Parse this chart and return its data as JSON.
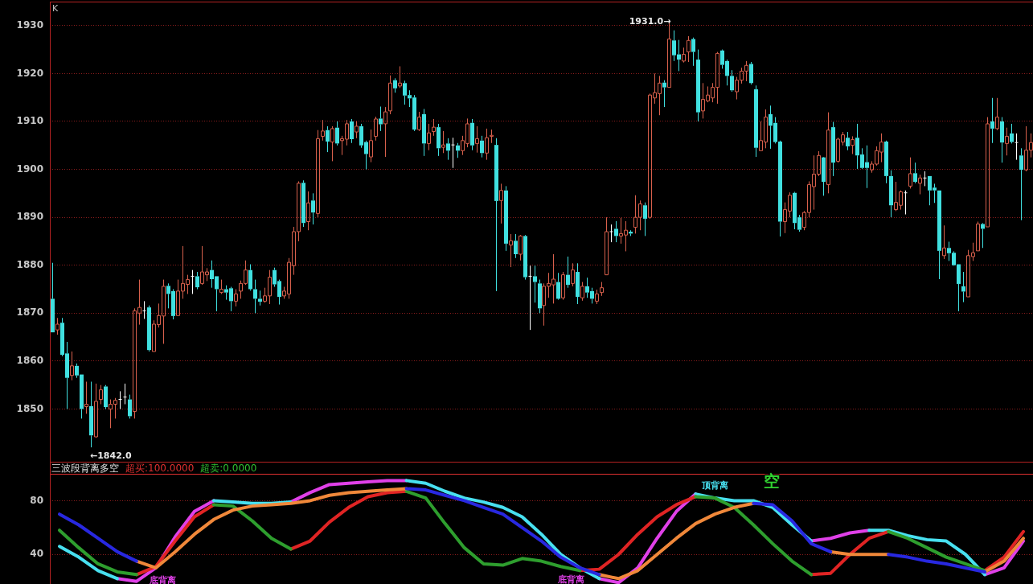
{
  "chart_data": [
    {
      "type": "candlestick",
      "title": "K",
      "categories": [
        null,
        null,
        null,
        null,
        null,
        null,
        null,
        null,
        null,
        null,
        null,
        null,
        null,
        null,
        null,
        null,
        null,
        null,
        null,
        null,
        null,
        null,
        null,
        null,
        null,
        null,
        null,
        null,
        null,
        null,
        null,
        null,
        null,
        null,
        null,
        null,
        null,
        null,
        null,
        null,
        null,
        null,
        null,
        null,
        null,
        null,
        null,
        null,
        null,
        null,
        null,
        null,
        null,
        null,
        null,
        null,
        null,
        null,
        null,
        null,
        null,
        null,
        null,
        null,
        null,
        null,
        null,
        null,
        null,
        null,
        null,
        null,
        null,
        null,
        null,
        null,
        null,
        null,
        null,
        null,
        null,
        null,
        null,
        null,
        null,
        null,
        null,
        null,
        null,
        null,
        null,
        null,
        null,
        null,
        null,
        null,
        null,
        null,
        null,
        null,
        null,
        null,
        null,
        null,
        null,
        null,
        null,
        null,
        null,
        null,
        null,
        null,
        null,
        null,
        null,
        null,
        null,
        null,
        null,
        null,
        null,
        null,
        null,
        null,
        null,
        null,
        null,
        null,
        null,
        null,
        null,
        null,
        null,
        null,
        null,
        null,
        null,
        null,
        null,
        null,
        null,
        null,
        null,
        null,
        null,
        null,
        null,
        null,
        null,
        null,
        null,
        null,
        null,
        null,
        null,
        null,
        null,
        null,
        null,
        null,
        null,
        null,
        null,
        null,
        null,
        null,
        null,
        null,
        null,
        null,
        null,
        null,
        null,
        null,
        null,
        null,
        null,
        null,
        null,
        null,
        null,
        null,
        null,
        null,
        null,
        null,
        null,
        null,
        null,
        null,
        null,
        null,
        null,
        null,
        null,
        null,
        null,
        null,
        null,
        null,
        null,
        null,
        null,
        null
      ],
      "ohlc": [
        [
          1873,
          1880.5,
          1866,
          1866
        ],
        [
          1866.5,
          1869,
          1865.5,
          1867.7
        ],
        [
          1868,
          1869,
          1861,
          1861.3
        ],
        [
          1861.6,
          1864,
          1850,
          1856.5
        ],
        [
          1857,
          1862,
          1856,
          1859
        ],
        [
          1859,
          1859.5,
          1856.5,
          1857
        ],
        [
          1857.2,
          1857.2,
          1848,
          1850
        ],
        [
          1850.5,
          1855.7,
          1849,
          1851
        ],
        [
          1850.6,
          1855.7,
          1842,
          1844.5
        ],
        [
          1844.2,
          1855.3,
          1844,
          1851.6
        ],
        [
          1852,
          1855,
          1851,
          1854
        ],
        [
          1854.7,
          1855,
          1850,
          1850.4
        ],
        [
          1850,
          1852,
          1846,
          1851
        ],
        [
          1851,
          1852.3,
          1848,
          1851.8
        ],
        [
          1852,
          1853.7,
          1850,
          1852
        ],
        [
          1852.5,
          1855.3,
          1851,
          1852.5
        ],
        [
          1852,
          1853,
          1848,
          1848.5
        ],
        [
          1849.5,
          1871,
          1848,
          1870.5
        ],
        [
          1870,
          1877,
          1867.6,
          1871.2
        ],
        [
          1870.5,
          1872.5,
          1868.8,
          1870.5
        ],
        [
          1871.2,
          1871.6,
          1862,
          1862.3
        ],
        [
          1862,
          1868.5,
          1862,
          1867.7
        ],
        [
          1867.6,
          1872,
          1867,
          1869.5
        ],
        [
          1869.4,
          1877,
          1863.6,
          1875.6
        ],
        [
          1875.7,
          1876.2,
          1871,
          1874
        ],
        [
          1874.6,
          1875,
          1868.7,
          1869.4
        ],
        [
          1869.5,
          1877,
          1869.5,
          1874.6
        ],
        [
          1874.6,
          1884,
          1873,
          1876.2
        ],
        [
          1876,
          1878,
          1874,
          1877
        ],
        [
          1877.7,
          1879,
          1874,
          1877.7
        ],
        [
          1877.7,
          1878.6,
          1875,
          1875.4
        ],
        [
          1876.2,
          1884,
          1875.9,
          1878.6
        ],
        [
          1878,
          1879.4,
          1876.7,
          1878.6
        ],
        [
          1879,
          1881,
          1875.3,
          1877.1
        ],
        [
          1877.7,
          1877.7,
          1870.4,
          1875
        ],
        [
          1874.3,
          1877,
          1874,
          1875
        ],
        [
          1875,
          1875.8,
          1872.8,
          1874.3
        ],
        [
          1875.2,
          1875.5,
          1870.4,
          1872.5
        ],
        [
          1872.5,
          1875,
          1871.4,
          1874
        ],
        [
          1874.6,
          1876.8,
          1873,
          1876.2
        ],
        [
          1876.2,
          1881,
          1875.9,
          1879
        ],
        [
          1879,
          1880.2,
          1874.7,
          1875
        ],
        [
          1875,
          1877,
          1870,
          1873
        ],
        [
          1873,
          1874.7,
          1871.6,
          1872.4
        ],
        [
          1872.5,
          1875.3,
          1872.2,
          1873.6
        ],
        [
          1873.6,
          1879,
          1871.9,
          1877.5
        ],
        [
          1879,
          1879.5,
          1875.5,
          1876
        ],
        [
          1876.7,
          1877,
          1871.8,
          1873.4
        ],
        [
          1873.6,
          1875.5,
          1873,
          1874.6
        ],
        [
          1874,
          1881.5,
          1873,
          1880.6
        ],
        [
          1879.9,
          1888,
          1878,
          1887
        ],
        [
          1887,
          1897.5,
          1885,
          1897.1
        ],
        [
          1897.2,
          1897.7,
          1888,
          1888.8
        ],
        [
          1889.1,
          1895.4,
          1887.3,
          1893
        ],
        [
          1893.5,
          1895,
          1888.5,
          1891
        ],
        [
          1890.8,
          1908.2,
          1890,
          1906.4
        ],
        [
          1906.9,
          1910.3,
          1906,
          1908
        ],
        [
          1908.2,
          1909,
          1903.6,
          1905.8
        ],
        [
          1905.7,
          1909,
          1901.7,
          1908.5
        ],
        [
          1908.7,
          1910,
          1905,
          1905.4
        ],
        [
          1906,
          1907,
          1903,
          1906.4
        ],
        [
          1906.3,
          1910.3,
          1905,
          1909.5
        ],
        [
          1910,
          1910.5,
          1905.5,
          1906.3
        ],
        [
          1907.8,
          1910,
          1906.5,
          1909
        ],
        [
          1909,
          1909.5,
          1904.5,
          1905
        ],
        [
          1905.7,
          1906,
          1900,
          1903.2
        ],
        [
          1902.6,
          1908.3,
          1901.5,
          1906
        ],
        [
          1906.9,
          1911,
          1906,
          1910.5
        ],
        [
          1910.6,
          1913.1,
          1908,
          1909.4
        ],
        [
          1909.5,
          1913,
          1902.6,
          1912
        ],
        [
          1912.2,
          1919.6,
          1911.5,
          1918
        ],
        [
          1918.6,
          1919,
          1916,
          1916.9
        ],
        [
          1917.4,
          1921.5,
          1917,
          1918
        ],
        [
          1918,
          1918.5,
          1913.5,
          1915.4
        ],
        [
          1915.5,
          1916.5,
          1913,
          1914.8
        ],
        [
          1915,
          1915.5,
          1908,
          1908.3
        ],
        [
          1908.3,
          1912,
          1908,
          1910.9
        ],
        [
          1911.5,
          1912.6,
          1902.8,
          1905.4
        ],
        [
          1905.4,
          1909.5,
          1904,
          1907.6
        ],
        [
          1907.9,
          1910.5,
          1907,
          1908.8
        ],
        [
          1908.8,
          1909.5,
          1902.8,
          1904.4
        ],
        [
          1904.6,
          1908,
          1903.4,
          1905.1
        ],
        [
          1905.4,
          1906.5,
          1902,
          1903.9
        ],
        [
          1905.1,
          1906.6,
          1900.3,
          1905.1
        ],
        [
          1905,
          1905.5,
          1902.4,
          1903.9
        ],
        [
          1903.9,
          1907,
          1903,
          1906
        ],
        [
          1905.4,
          1910.6,
          1904.6,
          1909.5
        ],
        [
          1909.7,
          1910.5,
          1904,
          1905
        ],
        [
          1905.4,
          1909,
          1903.5,
          1906.4
        ],
        [
          1906,
          1907,
          1902.5,
          1903.4
        ],
        [
          1903.4,
          1908.5,
          1902,
          1906.6
        ],
        [
          1906.9,
          1908.3,
          1905.5,
          1907.1
        ],
        [
          1905.1,
          1906.5,
          1874.6,
          1893.4
        ],
        [
          1893.5,
          1897,
          1888.7,
          1895.6
        ],
        [
          1895.6,
          1896.5,
          1883,
          1884.5
        ],
        [
          1884.2,
          1886.5,
          1879.6,
          1885.1
        ],
        [
          1885.1,
          1886.5,
          1881.5,
          1882.3
        ],
        [
          1882.3,
          1886.3,
          1881,
          1886.1
        ],
        [
          1886.1,
          1886.3,
          1877,
          1877.5
        ],
        [
          1877.7,
          1879.9,
          1866.5,
          1877.7
        ],
        [
          1877.7,
          1879.9,
          1872.2,
          1876.5
        ],
        [
          1876.2,
          1877,
          1870,
          1871
        ],
        [
          1871.6,
          1876.2,
          1867.4,
          1875.6
        ],
        [
          1875.6,
          1878.4,
          1873.2,
          1876.2
        ],
        [
          1875.9,
          1882.3,
          1872,
          1877.1
        ],
        [
          1876.5,
          1878.4,
          1872.8,
          1873
        ],
        [
          1873.2,
          1878.6,
          1872.8,
          1878
        ],
        [
          1878,
          1881.8,
          1875.3,
          1875.9
        ],
        [
          1876.2,
          1880.4,
          1875.6,
          1879
        ],
        [
          1878.6,
          1880.4,
          1871.9,
          1873.4
        ],
        [
          1873.2,
          1876.5,
          1872.6,
          1875.6
        ],
        [
          1875.6,
          1877.4,
          1873.2,
          1874.3
        ],
        [
          1874.6,
          1875.3,
          1872,
          1873
        ],
        [
          1872.5,
          1874.9,
          1871.9,
          1874
        ],
        [
          1874.3,
          1876.5,
          1873.6,
          1875.3
        ],
        [
          1878,
          1890,
          1878,
          1887
        ],
        [
          1887,
          1888.5,
          1884.8,
          1887
        ],
        [
          1887.6,
          1889.2,
          1884.8,
          1886.1
        ],
        [
          1886.1,
          1889.9,
          1884.5,
          1886.6
        ],
        [
          1886.3,
          1889.2,
          1882.9,
          1887.3
        ],
        [
          1887,
          1887.3,
          1886.1,
          1886.6
        ],
        [
          1887.9,
          1894.6,
          1886.6,
          1890
        ],
        [
          1890,
          1893.5,
          1887.3,
          1892.8
        ],
        [
          1892.5,
          1893.1,
          1886.1,
          1889.7
        ],
        [
          1890,
          1915.8,
          1889.7,
          1915.5
        ],
        [
          1914.9,
          1920,
          1913.7,
          1916
        ],
        [
          1915.8,
          1919.5,
          1911.3,
          1918
        ],
        [
          1918.1,
          1918.6,
          1913,
          1917.1
        ],
        [
          1917.1,
          1931,
          1917.1,
          1927.2
        ],
        [
          1926.9,
          1929,
          1922.6,
          1923.8
        ],
        [
          1924,
          1927,
          1920.5,
          1922.9
        ],
        [
          1922.6,
          1925.4,
          1922.3,
          1924
        ],
        [
          1924.5,
          1927.8,
          1922.4,
          1926.9
        ],
        [
          1927.2,
          1927.5,
          1921.6,
          1924.5
        ],
        [
          1922.9,
          1925,
          1910,
          1911.9
        ],
        [
          1912.2,
          1918,
          1910.6,
          1914.6
        ],
        [
          1914.3,
          1917.3,
          1914,
          1915.5
        ],
        [
          1914.9,
          1918,
          1914,
          1917.1
        ],
        [
          1917.1,
          1924.5,
          1913.7,
          1924.2
        ],
        [
          1924.8,
          1925,
          1921,
          1921.8
        ],
        [
          1922.6,
          1922.9,
          1917.5,
          1919.5
        ],
        [
          1919.5,
          1920.7,
          1916.2,
          1916.5
        ],
        [
          1916.2,
          1919.3,
          1914.6,
          1918.6
        ],
        [
          1918.6,
          1921.2,
          1917.9,
          1920.5
        ],
        [
          1920.5,
          1922.6,
          1918.4,
          1921.7
        ],
        [
          1922,
          1922.4,
          1917.7,
          1918
        ],
        [
          1916.7,
          1917.5,
          1902.6,
          1904.5
        ],
        [
          1903.9,
          1910,
          1903.9,
          1906
        ],
        [
          1905.7,
          1912.5,
          1904.4,
          1910.9
        ],
        [
          1911.5,
          1913.3,
          1904.3,
          1909.1
        ],
        [
          1909.7,
          1910.9,
          1905.4,
          1905.7
        ],
        [
          1905.8,
          1906,
          1886,
          1889.1
        ],
        [
          1889.1,
          1893.1,
          1886.7,
          1891.6
        ],
        [
          1891.3,
          1895.2,
          1890,
          1894.6
        ],
        [
          1895.1,
          1895.3,
          1887.5,
          1888.8
        ],
        [
          1890,
          1890.5,
          1887,
          1887.4
        ],
        [
          1887.9,
          1891.3,
          1887.3,
          1891
        ],
        [
          1891,
          1897.5,
          1890,
          1896.8
        ],
        [
          1896.4,
          1902.9,
          1891.6,
          1899
        ],
        [
          1899,
          1903.8,
          1898.6,
          1902.9
        ],
        [
          1902.5,
          1902.6,
          1894.5,
          1897.4
        ],
        [
          1896.8,
          1911.9,
          1895,
          1908.2
        ],
        [
          1908.8,
          1909.9,
          1898.6,
          1901.4
        ],
        [
          1901.7,
          1906.6,
          1901.4,
          1906.3
        ],
        [
          1905.7,
          1907.8,
          1905,
          1907.2
        ],
        [
          1906.6,
          1907.8,
          1904,
          1904.8
        ],
        [
          1905,
          1906.9,
          1903.2,
          1906.2
        ],
        [
          1906.6,
          1909.5,
          1900.1,
          1902.9
        ],
        [
          1903.1,
          1904.4,
          1900.1,
          1900.3
        ],
        [
          1901.5,
          1905,
          1896.1,
          1900.3
        ],
        [
          1899.9,
          1901.7,
          1899.3,
          1901.1
        ],
        [
          1901.1,
          1904.8,
          1900.8,
          1903.9
        ],
        [
          1903.6,
          1907.5,
          1901.5,
          1905.7
        ],
        [
          1905.8,
          1906,
          1897.1,
          1898.6
        ],
        [
          1898.6,
          1899.8,
          1890,
          1892.5
        ],
        [
          1891.6,
          1897.4,
          1891.3,
          1893.1
        ],
        [
          1892.5,
          1895.6,
          1891.6,
          1895.3
        ],
        [
          1895.1,
          1895.6,
          1890.6,
          1895.1
        ],
        [
          1896.5,
          1902.5,
          1896,
          1899.1
        ],
        [
          1899.2,
          1901.4,
          1897.1,
          1897.4
        ],
        [
          1897.1,
          1898.9,
          1894.8,
          1898.2
        ],
        [
          1898.2,
          1899.6,
          1896.5,
          1898.2
        ],
        [
          1898.6,
          1898.6,
          1892.5,
          1895.6
        ],
        [
          1896.2,
          1897,
          1893,
          1895.6
        ],
        [
          1895.6,
          1895.6,
          1877.1,
          1883
        ],
        [
          1882,
          1888.3,
          1881.3,
          1883.6
        ],
        [
          1883.6,
          1884.9,
          1880.9,
          1882.5
        ],
        [
          1882.6,
          1882.9,
          1879.9,
          1880
        ],
        [
          1880.2,
          1880.2,
          1870.4,
          1876.1
        ],
        [
          1875.6,
          1878.6,
          1872.3,
          1874.5
        ],
        [
          1873.4,
          1883.2,
          1873.4,
          1882
        ],
        [
          1881.8,
          1884.7,
          1880.9,
          1882.6
        ],
        [
          1883,
          1889.1,
          1883,
          1888.6
        ],
        [
          1888.6,
          1888.8,
          1883.6,
          1887.6
        ],
        [
          1888,
          1910.9,
          1888,
          1909.5
        ],
        [
          1910,
          1914.9,
          1905.5,
          1908.5
        ],
        [
          1908.5,
          1914.9,
          1908.2,
          1910.9
        ],
        [
          1910,
          1910.9,
          1901.4,
          1905.6
        ],
        [
          1905.4,
          1908.7,
          1902.9,
          1906.9
        ],
        [
          1907.5,
          1909.5,
          1905.4,
          1905.7
        ],
        [
          1905.6,
          1907.5,
          1902,
          1905.6
        ],
        [
          1902.9,
          1904.4,
          1889.4,
          1899.9
        ],
        [
          1899.9,
          1909,
          1899.6,
          1904
        ],
        [
          1904,
          1907.5,
          1902.5,
          1905.6
        ]
      ],
      "colors": [
        "#40e0e0",
        "#d8604c",
        "#40e0e0",
        "#40e0e0",
        "#d8604c",
        "#40e0e0",
        "#40e0e0",
        "#d8604c",
        "#40e0e0",
        "#d8604c",
        "#d8604c",
        "#40e0e0",
        "#d8604c",
        "#d8604c",
        "#ffffff",
        "#ffffff",
        "#40e0e0",
        "#d8604c",
        "#d8604c",
        "#ffffff",
        "#40e0e0",
        "#d8604c",
        "#d8604c",
        "#d8604c",
        "#40e0e0",
        "#40e0e0",
        "#d8604c",
        "#d8604c",
        "#d8604c",
        "#ffffff",
        "#40e0e0",
        "#d8604c",
        "#d8604c",
        "#40e0e0",
        "#40e0e0",
        "#d8604c",
        "#40e0e0",
        "#40e0e0",
        "#d8604c",
        "#d8604c",
        "#d8604c",
        "#40e0e0",
        "#40e0e0",
        "#40e0e0",
        "#d8604c",
        "#d8604c",
        "#40e0e0",
        "#40e0e0",
        "#d8604c",
        "#d8604c",
        "#d8604c",
        "#d8604c",
        "#40e0e0",
        "#d8604c",
        "#40e0e0",
        "#d8604c",
        "#d8604c",
        "#40e0e0",
        "#d8604c",
        "#40e0e0",
        "#d8604c",
        "#d8604c",
        "#40e0e0",
        "#d8604c",
        "#40e0e0",
        "#40e0e0",
        "#d8604c",
        "#d8604c",
        "#40e0e0",
        "#d8604c",
        "#d8604c",
        "#40e0e0",
        "#d8604c",
        "#40e0e0",
        "#40e0e0",
        "#40e0e0",
        "#d8604c",
        "#40e0e0",
        "#d8604c",
        "#d8604c",
        "#40e0e0",
        "#d8604c",
        "#40e0e0",
        "#ffffff",
        "#40e0e0",
        "#d8604c",
        "#d8604c",
        "#40e0e0",
        "#d8604c",
        "#40e0e0",
        "#d8604c",
        "#d8604c",
        "#40e0e0",
        "#d8604c",
        "#40e0e0",
        "#d8604c",
        "#40e0e0",
        "#d8604c",
        "#40e0e0",
        "#ffffff",
        "#40e0e0",
        "#40e0e0",
        "#d8604c",
        "#d8604c",
        "#d8604c",
        "#40e0e0",
        "#d8604c",
        "#40e0e0",
        "#d8604c",
        "#40e0e0",
        "#d8604c",
        "#40e0e0",
        "#40e0e0",
        "#d8604c",
        "#d8604c",
        "#d8604c",
        "#ffffff",
        "#40e0e0",
        "#d8604c",
        "#d8604c",
        "#40e0e0",
        "#d8604c",
        "#d8604c",
        "#40e0e0",
        "#d8604c",
        "#d8604c",
        "#d8604c",
        "#40e0e0",
        "#d8604c",
        "#40e0e0",
        "#40e0e0",
        "#d8604c",
        "#d8604c",
        "#40e0e0",
        "#40e0e0",
        "#d8604c",
        "#d8604c",
        "#d8604c",
        "#d8604c",
        "#40e0e0",
        "#40e0e0",
        "#40e0e0",
        "#d8604c",
        "#d8604c",
        "#d8604c",
        "#40e0e0",
        "#40e0e0",
        "#d8604c",
        "#d8604c",
        "#40e0e0",
        "#40e0e0",
        "#40e0e0",
        "#d8604c",
        "#d8604c",
        "#40e0e0",
        "#40e0e0",
        "#d8604c",
        "#d8604c",
        "#d8604c",
        "#d8604c",
        "#40e0e0",
        "#d8604c",
        "#40e0e0",
        "#d8604c",
        "#d8604c",
        "#40e0e0",
        "#d8604c",
        "#40e0e0",
        "#40e0e0",
        "#40e0e0",
        "#d8604c",
        "#d8604c",
        "#d8604c",
        "#40e0e0",
        "#40e0e0",
        "#d8604c",
        "#d8604c",
        "#ffffff",
        "#d8604c",
        "#40e0e0",
        "#d8604c",
        "#ffffff",
        "#40e0e0",
        "#40e0e0",
        "#40e0e0",
        "#d8604c",
        "#40e0e0",
        "#40e0e0",
        "#40e0e0",
        "#40e0e0",
        "#d8604c",
        "#d8604c",
        "#d8604c",
        "#40e0e0",
        "#d8604c",
        "#40e0e0",
        "#d8604c",
        "#40e0e0",
        "#d8604c",
        "#40e0e0",
        "#ffffff",
        "#40e0e0",
        "#d8604c",
        "#d8604c"
      ],
      "ylim": [
        1839,
        1935
      ],
      "yticks": [
        1850,
        1860,
        1870,
        1880,
        1890,
        1900,
        1910,
        1920,
        1930
      ],
      "grid": "y",
      "legend": false,
      "tick_labels": "y",
      "annotations": [
        "1931.0→",
        "←1842.0"
      ]
    },
    {
      "type": "line",
      "title": "三波段背离多空",
      "categories": [
        null,
        null,
        null,
        null,
        null,
        null,
        null,
        null,
        null,
        null,
        null,
        null,
        null,
        null,
        null,
        null,
        null,
        null,
        null,
        null,
        null,
        null,
        null,
        null,
        null,
        null,
        null,
        null,
        null,
        null,
        null,
        null,
        null,
        null,
        null,
        null,
        null,
        null,
        null,
        null,
        null,
        null,
        null,
        null,
        null,
        null,
        null,
        null,
        null,
        null,
        null
      ],
      "series": [
        {
          "color": "#2828e0",
          "values": [
            70,
            62,
            52,
            42,
            35,
            null,
            null,
            null,
            null,
            null,
            null,
            null,
            null,
            null,
            null,
            null,
            null,
            null,
            89,
            88,
            84,
            80,
            75,
            70,
            60,
            50,
            38,
            30,
            25,
            null,
            null,
            null,
            null,
            null,
            null,
            null,
            78,
            77,
            65,
            48,
            42,
            null,
            null,
            40,
            38,
            35,
            33,
            30,
            27,
            null,
            null
          ]
        },
        {
          "color": "#f0883a",
          "values": [
            null,
            null,
            null,
            null,
            35,
            30,
            42,
            55,
            66,
            73,
            76,
            77,
            78,
            80,
            84,
            86,
            87,
            88,
            89,
            null,
            null,
            null,
            null,
            null,
            null,
            null,
            null,
            null,
            25,
            22,
            28,
            40,
            52,
            63,
            70,
            75,
            78,
            null,
            null,
            null,
            42,
            40,
            40,
            40,
            null,
            null,
            null,
            null,
            27,
            35,
            52
          ]
        },
        {
          "color": "#2e9e2e",
          "values": [
            58,
            45,
            33,
            27,
            25,
            null,
            null,
            null,
            77,
            76,
            65,
            52,
            44,
            null,
            null,
            null,
            null,
            null,
            87,
            82,
            63,
            45,
            33,
            32,
            37,
            35,
            31,
            28,
            null,
            null,
            null,
            null,
            null,
            83,
            82,
            75,
            62,
            48,
            35,
            25,
            null,
            null,
            null,
            57,
            52,
            45,
            38,
            33,
            28,
            null,
            null
          ]
        },
        {
          "color": "#e02424",
          "values": [
            null,
            null,
            null,
            null,
            25,
            31,
            50,
            68,
            77,
            null,
            null,
            null,
            44,
            50,
            64,
            75,
            83,
            86,
            87,
            null,
            null,
            null,
            null,
            null,
            null,
            null,
            null,
            28,
            29,
            40,
            55,
            68,
            77,
            83,
            null,
            null,
            null,
            null,
            null,
            25,
            26,
            40,
            52,
            57,
            null,
            null,
            null,
            null,
            28,
            38,
            57
          ]
        },
        {
          "color": "#48e0f0",
          "values": [
            46,
            38,
            28,
            22,
            null,
            null,
            null,
            null,
            80,
            79,
            78,
            78,
            79,
            null,
            null,
            null,
            null,
            null,
            95,
            93,
            87,
            82,
            79,
            75,
            68,
            55,
            40,
            30,
            22,
            null,
            null,
            null,
            null,
            85,
            82,
            80,
            80,
            75,
            62,
            50,
            null,
            null,
            58,
            58,
            54,
            51,
            50,
            40,
            25,
            null,
            null
          ]
        },
        {
          "color": "#e040e8",
          "values": [
            null,
            null,
            null,
            22,
            20,
            30,
            53,
            72,
            80,
            null,
            null,
            null,
            79,
            86,
            92,
            93,
            94,
            95,
            95,
            null,
            null,
            null,
            null,
            null,
            null,
            null,
            null,
            null,
            22,
            19,
            30,
            52,
            72,
            85,
            null,
            null,
            null,
            null,
            null,
            50,
            52,
            56,
            58,
            null,
            null,
            null,
            null,
            null,
            25,
            30,
            50
          ]
        }
      ],
      "ylim": [
        18,
        109
      ],
      "yticks": [
        40,
        80
      ],
      "grid": "y",
      "legend": false,
      "tick_labels": "y",
      "marker": "none",
      "line_style": "solid",
      "ref_lines": [
        {
          "axis": "y",
          "value": 100,
          "label": "超买:100.0000",
          "color": "#e03030"
        }
      ],
      "annotations": [
        "超卖:0.0000",
        "底背离",
        "底背离",
        "顶背离",
        "空"
      ]
    }
  ]
}
